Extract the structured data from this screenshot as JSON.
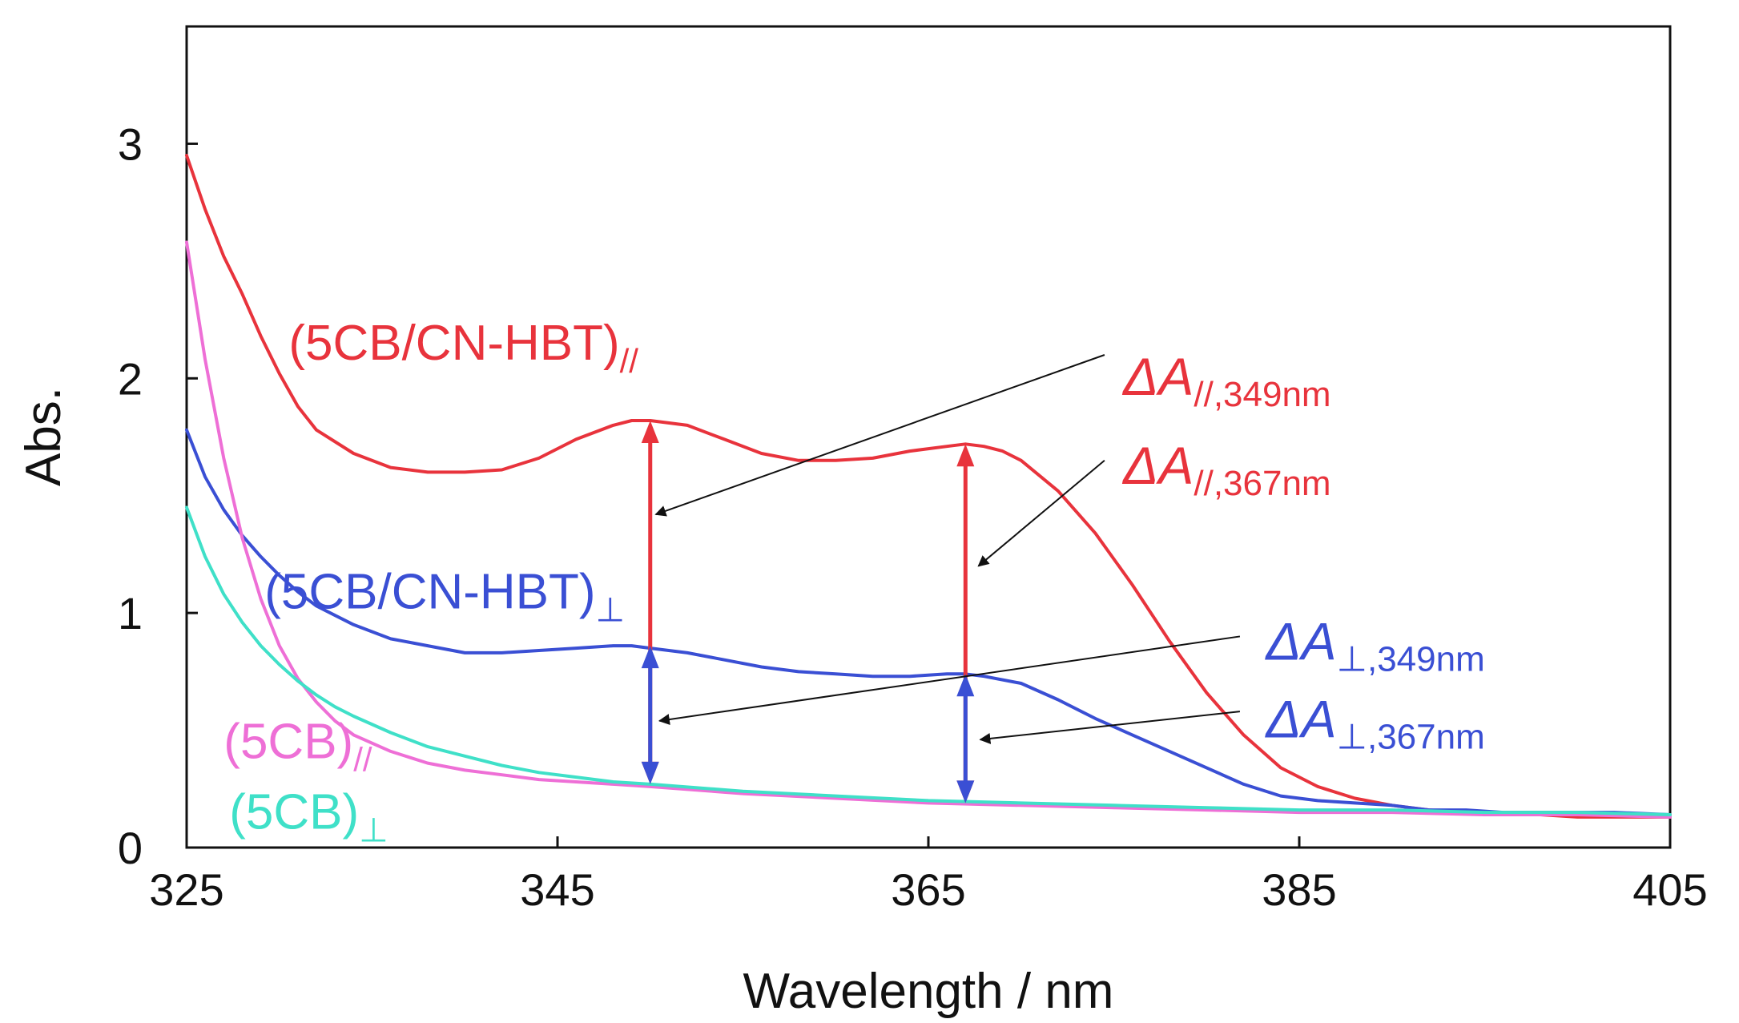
{
  "chart_data": {
    "type": "line",
    "title": "",
    "xlabel": "Wavelength / nm",
    "ylabel": "Abs.",
    "xlim": [
      325,
      405
    ],
    "ylim": [
      0,
      3.5
    ],
    "xticks": [
      325,
      345,
      365,
      385,
      405
    ],
    "yticks": [
      0,
      1,
      2,
      3
    ],
    "grid": false,
    "series": [
      {
        "name": "5CB/CN-HBT parallel",
        "label_main": "(5CB/CN-HBT)",
        "label_sub": "//",
        "color": "#e8333c",
        "x": [
          325,
          326,
          327,
          328,
          329,
          330,
          331,
          332,
          334,
          336,
          338,
          340,
          342,
          344,
          346,
          348,
          349,
          350,
          352,
          354,
          356,
          358,
          360,
          362,
          364,
          366,
          367,
          368,
          369,
          370,
          372,
          374,
          376,
          378,
          380,
          382,
          384,
          386,
          388,
          390,
          392,
          394,
          396,
          398,
          400,
          402,
          405
        ],
        "values": [
          2.95,
          2.72,
          2.52,
          2.36,
          2.18,
          2.02,
          1.88,
          1.78,
          1.68,
          1.62,
          1.6,
          1.6,
          1.61,
          1.66,
          1.74,
          1.8,
          1.82,
          1.82,
          1.8,
          1.74,
          1.68,
          1.65,
          1.65,
          1.66,
          1.69,
          1.71,
          1.72,
          1.71,
          1.69,
          1.65,
          1.52,
          1.34,
          1.12,
          0.88,
          0.66,
          0.48,
          0.34,
          0.26,
          0.21,
          0.18,
          0.16,
          0.15,
          0.14,
          0.14,
          0.13,
          0.13,
          0.13
        ]
      },
      {
        "name": "5CB/CN-HBT perpendicular",
        "label_main": "(5CB/CN-HBT)",
        "label_sub": "⊥",
        "color": "#3a4fd4",
        "x": [
          325,
          326,
          327,
          328,
          329,
          330,
          331,
          332,
          334,
          336,
          338,
          340,
          342,
          344,
          346,
          348,
          349,
          350,
          352,
          354,
          356,
          358,
          360,
          362,
          364,
          366,
          367,
          368,
          370,
          372,
          374,
          376,
          378,
          380,
          382,
          384,
          386,
          388,
          390,
          392,
          394,
          396,
          398,
          400,
          402,
          405
        ],
        "values": [
          1.78,
          1.58,
          1.44,
          1.33,
          1.24,
          1.16,
          1.09,
          1.03,
          0.95,
          0.89,
          0.86,
          0.83,
          0.83,
          0.84,
          0.85,
          0.86,
          0.86,
          0.85,
          0.83,
          0.8,
          0.77,
          0.75,
          0.74,
          0.73,
          0.73,
          0.74,
          0.74,
          0.73,
          0.7,
          0.63,
          0.55,
          0.48,
          0.41,
          0.34,
          0.27,
          0.22,
          0.2,
          0.19,
          0.18,
          0.16,
          0.16,
          0.15,
          0.15,
          0.15,
          0.15,
          0.14
        ]
      },
      {
        "name": "5CB parallel",
        "label_main": "(5CB)",
        "label_sub": "//",
        "color": "#ee6fd6",
        "x": [
          325,
          326,
          327,
          328,
          329,
          330,
          331,
          332,
          333,
          334,
          336,
          338,
          340,
          342,
          344,
          346,
          348,
          350,
          355,
          360,
          365,
          370,
          375,
          380,
          385,
          390,
          395,
          400,
          405
        ],
        "values": [
          2.58,
          2.08,
          1.66,
          1.32,
          1.06,
          0.86,
          0.72,
          0.62,
          0.54,
          0.48,
          0.41,
          0.36,
          0.33,
          0.31,
          0.29,
          0.28,
          0.27,
          0.26,
          0.23,
          0.21,
          0.19,
          0.18,
          0.17,
          0.16,
          0.15,
          0.15,
          0.14,
          0.14,
          0.13
        ]
      },
      {
        "name": "5CB perpendicular",
        "label_main": "(5CB)",
        "label_sub": "⊥",
        "color": "#3fe0c8",
        "x": [
          325,
          326,
          327,
          328,
          329,
          330,
          331,
          332,
          333,
          334,
          336,
          338,
          340,
          342,
          344,
          346,
          348,
          350,
          355,
          360,
          365,
          370,
          375,
          380,
          385,
          390,
          395,
          400,
          405
        ],
        "values": [
          1.45,
          1.24,
          1.08,
          0.96,
          0.86,
          0.78,
          0.71,
          0.65,
          0.6,
          0.56,
          0.49,
          0.43,
          0.39,
          0.35,
          0.32,
          0.3,
          0.28,
          0.27,
          0.24,
          0.22,
          0.2,
          0.19,
          0.18,
          0.17,
          0.16,
          0.16,
          0.15,
          0.15,
          0.14
        ]
      }
    ],
    "difference_arrows": [
      {
        "name": "delta-parallel-349",
        "x": 350,
        "y_from": 0.27,
        "y_to": 1.82,
        "color": "#e8333c"
      },
      {
        "name": "delta-parallel-367",
        "x": 367,
        "y_from": 0.19,
        "y_to": 1.72,
        "color": "#e8333c"
      },
      {
        "name": "delta-perp-349",
        "x": 350,
        "y_from": 0.27,
        "y_to": 0.86,
        "color": "#3a4fd4"
      },
      {
        "name": "delta-perp-367",
        "x": 367,
        "y_from": 0.19,
        "y_to": 0.74,
        "color": "#3a4fd4"
      }
    ],
    "annotations": [
      {
        "name": "delta-a-parallel-349",
        "main": "ΔA",
        "sub": "//,349nm",
        "color": "#e8333c",
        "label_x": 375.5,
        "label_y": 1.93,
        "pointer_from_x": 374.5,
        "pointer_from_y": 2.1,
        "pointer_to_x": 350.3,
        "pointer_to_y": 1.42
      },
      {
        "name": "delta-a-parallel-367",
        "main": "ΔA",
        "sub": "//,367nm",
        "color": "#e8333c",
        "label_x": 375.5,
        "label_y": 1.55,
        "pointer_from_x": 374.5,
        "pointer_from_y": 1.65,
        "pointer_to_x": 367.7,
        "pointer_to_y": 1.2
      },
      {
        "name": "delta-a-perp-349",
        "main": "ΔA",
        "sub": "⊥,349nm",
        "color": "#3a4fd4",
        "label_x": 383.2,
        "label_y": 0.8,
        "pointer_from_x": 381.8,
        "pointer_from_y": 0.9,
        "pointer_to_x": 350.5,
        "pointer_to_y": 0.54
      },
      {
        "name": "delta-a-perp-367",
        "main": "ΔA",
        "sub": "⊥,367nm",
        "color": "#3a4fd4",
        "label_x": 383.2,
        "label_y": 0.47,
        "pointer_from_x": 381.8,
        "pointer_from_y": 0.58,
        "pointer_to_x": 367.8,
        "pointer_to_y": 0.46
      }
    ],
    "series_labels": [
      {
        "series": 0,
        "x": 330.5,
        "y": 2.08
      },
      {
        "series": 1,
        "x": 329.2,
        "y": 1.02
      },
      {
        "series": 2,
        "x": 327.0,
        "y": 0.38
      },
      {
        "series": 3,
        "x": 327.3,
        "y": 0.08
      }
    ]
  }
}
